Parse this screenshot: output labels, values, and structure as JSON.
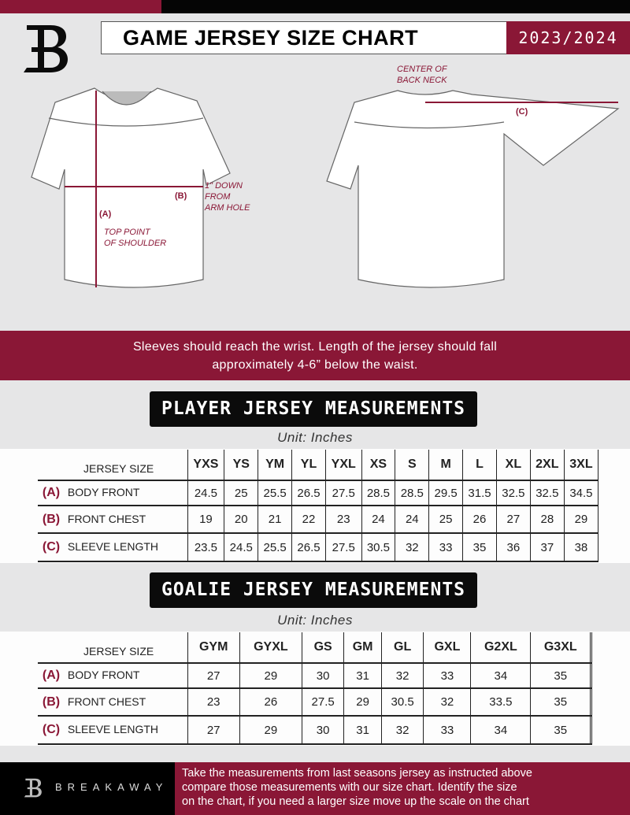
{
  "header": {
    "title": "GAME JERSEY SIZE CHART",
    "season": "2023/2024"
  },
  "diagram": {
    "center_back_neck": [
      "CENTER OF",
      "BACK NECK"
    ],
    "label_a": "(A)",
    "label_b": "(B)",
    "label_c": "(C)",
    "down_note": [
      "1\" DOWN",
      "FROM",
      "ARM HOLE"
    ],
    "shoulder_note": [
      "TOP POINT",
      "OF SHOULDER"
    ]
  },
  "banner": {
    "lines": [
      "Sleeves should reach the wrist. Length of the jersey should fall",
      "approximately 4-6” below the waist."
    ]
  },
  "player": {
    "title": "PLAYER JERSEY MEASUREMENTS",
    "unit": "Unit: Inches",
    "size_label": "JERSEY SIZE",
    "sizes": [
      "YXS",
      "YS",
      "YM",
      "YL",
      "YXL",
      "XS",
      "S",
      "M",
      "L",
      "XL",
      "2XL",
      "3XL"
    ],
    "rows": [
      {
        "letter": "(A)",
        "label": "BODY FRONT",
        "values": [
          "24.5",
          "25",
          "25.5",
          "26.5",
          "27.5",
          "28.5",
          "28.5",
          "29.5",
          "31.5",
          "32.5",
          "32.5",
          "34.5"
        ]
      },
      {
        "letter": "(B)",
        "label": "FRONT CHEST",
        "values": [
          "19",
          "20",
          "21",
          "22",
          "23",
          "24",
          "24",
          "25",
          "26",
          "27",
          "28",
          "29"
        ]
      },
      {
        "letter": "(C)",
        "label": "SLEEVE LENGTH",
        "values": [
          "23.5",
          "24.5",
          "25.5",
          "26.5",
          "27.5",
          "30.5",
          "32",
          "33",
          "35",
          "36",
          "37",
          "38"
        ]
      }
    ]
  },
  "goalie": {
    "title": "GOALIE JERSEY MEASUREMENTS",
    "unit": "Unit: Inches",
    "size_label": "JERSEY SIZE",
    "sizes": [
      "GYM",
      "GYXL",
      "GS",
      "GM",
      "GL",
      "GXL",
      "G2XL",
      "G3XL",
      ""
    ],
    "rows": [
      {
        "letter": "(A)",
        "label": "BODY FRONT",
        "values": [
          "27",
          "29",
          "30",
          "31",
          "32",
          "33",
          "34",
          "35",
          ""
        ]
      },
      {
        "letter": "(B)",
        "label": "FRONT CHEST",
        "values": [
          "23",
          "26",
          "27.5",
          "29",
          "30.5",
          "32",
          "33.5",
          "35",
          ""
        ]
      },
      {
        "letter": "(C)",
        "label": "SLEEVE LENGTH",
        "values": [
          "27",
          "29",
          "30",
          "31",
          "32",
          "33",
          "34",
          "35",
          ""
        ]
      }
    ]
  },
  "footer": {
    "brand": "BREAKAWAY",
    "text": [
      "Take the measurements from last seasons jersey as instructed above",
      "compare those measurements  with our size chart. Identify the size",
      "on the chart, if you need a larger size move up the scale on the chart"
    ]
  },
  "colors": {
    "accent": "#8a1736",
    "black": "#050505",
    "background": "#e6e6e7"
  }
}
